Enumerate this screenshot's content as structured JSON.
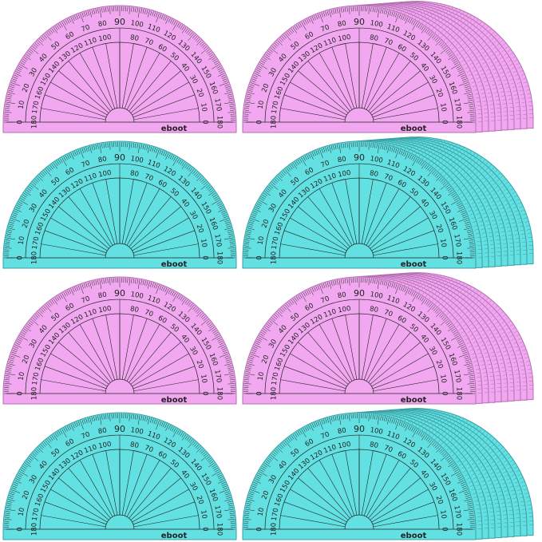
{
  "brand": "eboot",
  "colors": {
    "pink": "#f2a8f0",
    "pink_edge": "#b46fb2",
    "cyan": "#63e0e2",
    "cyan_edge": "#3a9fa3",
    "line": "#222222"
  },
  "outer_scale": [
    "0",
    "10",
    "20",
    "30",
    "40",
    "50",
    "60",
    "70",
    "80",
    "90",
    "100",
    "110",
    "120",
    "130",
    "140",
    "150",
    "160",
    "170",
    "180"
  ],
  "inner_scale": [
    "180",
    "170",
    "160",
    "150",
    "140",
    "130",
    "120",
    "110",
    "100",
    "",
    "80",
    "70",
    "60",
    "50",
    "40",
    "30",
    "20",
    "10",
    "0"
  ],
  "panels": [
    {
      "color": "pink",
      "stacked": false
    },
    {
      "color": "pink",
      "stacked": true
    },
    {
      "color": "cyan",
      "stacked": false
    },
    {
      "color": "cyan",
      "stacked": true
    },
    {
      "color": "pink",
      "stacked": false
    },
    {
      "color": "pink",
      "stacked": true
    },
    {
      "color": "cyan",
      "stacked": false
    },
    {
      "color": "cyan",
      "stacked": true
    }
  ]
}
